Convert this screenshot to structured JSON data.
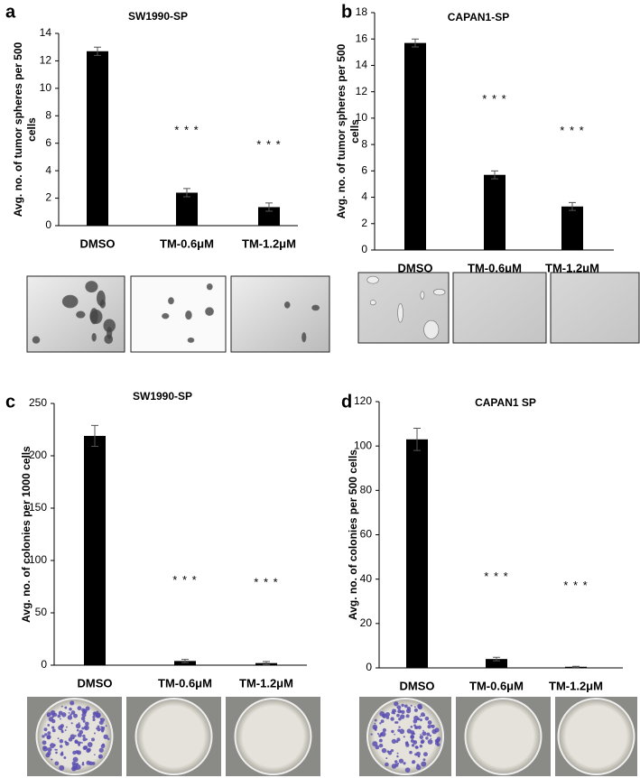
{
  "chart_data": [
    {
      "type": "bar",
      "panel": "a",
      "title": "SW1990-SP",
      "ylabel": [
        "Avg. no. of tumor spheres per 500",
        "cells"
      ],
      "categories": [
        "DMSO",
        "TM-0.6μM",
        "TM-1.2μM"
      ],
      "values": [
        12.7,
        2.4,
        1.35
      ],
      "errors": [
        0.3,
        0.3,
        0.3
      ],
      "significance": [
        null,
        "* * *",
        "* * *"
      ],
      "color": "#000000",
      "ylim": [
        0,
        14
      ],
      "yticks": [
        0,
        2,
        4,
        6,
        8,
        10,
        12,
        14
      ]
    },
    {
      "type": "bar",
      "panel": "b",
      "title": "CAPAN1-SP",
      "ylabel": [
        "Avg. no. of tumor spheres per 500",
        "cells"
      ],
      "categories": [
        "DMSO",
        "TM-0.6μM",
        "TM-1.2μM"
      ],
      "values": [
        15.7,
        5.7,
        3.3
      ],
      "errors": [
        0.3,
        0.3,
        0.3
      ],
      "significance": [
        null,
        "* * *",
        "* * *"
      ],
      "color": "#000000",
      "ylim": [
        0,
        18
      ],
      "yticks": [
        0,
        2,
        4,
        6,
        8,
        10,
        12,
        14,
        16,
        18
      ]
    },
    {
      "type": "bar",
      "panel": "c",
      "title": "SW1990-SP",
      "ylabel": [
        "Avg. no. of colonies per 1000 cells"
      ],
      "categories": [
        "DMSO",
        "TM-0.6μM",
        "TM-1.2μM"
      ],
      "values": [
        219,
        4,
        2
      ],
      "errors": [
        10,
        1.5,
        1.5
      ],
      "significance": [
        null,
        "* * *",
        "* * *"
      ],
      "color": "#000000",
      "ylim": [
        0,
        250
      ],
      "yticks": [
        0,
        50,
        100,
        150,
        200,
        250
      ]
    },
    {
      "type": "bar",
      "panel": "d",
      "title": "CAPAN1 SP",
      "ylabel": [
        "Avg. no. of colonies per 500 cells"
      ],
      "categories": [
        "DMSO",
        "TM-0.6μM",
        "TM-1.2μM"
      ],
      "values": [
        103,
        4,
        0.5
      ],
      "errors": [
        5,
        0.8,
        0.2
      ],
      "significance": [
        null,
        "* * *",
        "* * *"
      ],
      "color": "#000000",
      "ylim": [
        0,
        120
      ],
      "yticks": [
        0,
        20,
        40,
        60,
        80,
        100,
        120
      ]
    }
  ]
}
